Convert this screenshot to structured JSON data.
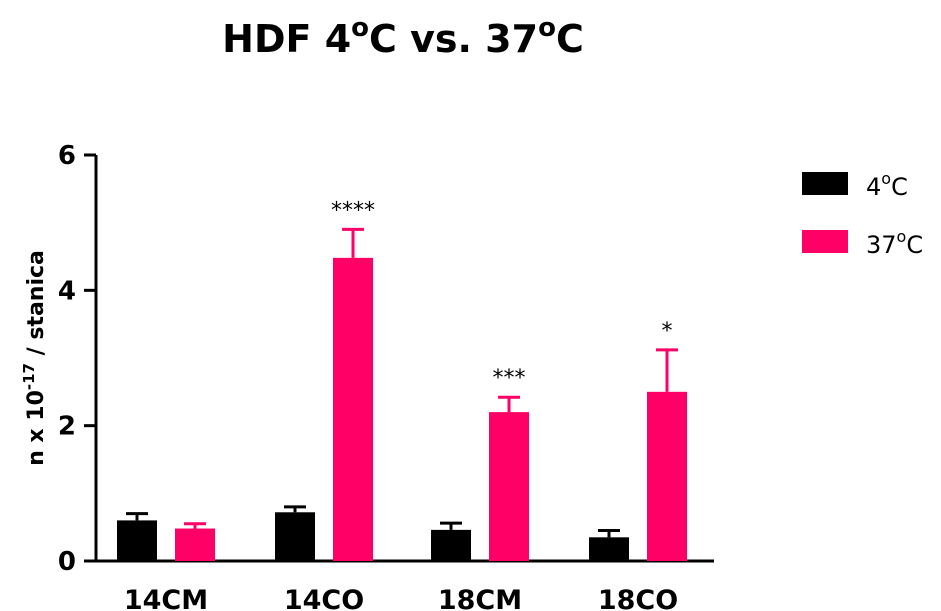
{
  "chart_data": {
    "type": "bar",
    "title": {
      "main": "HDF 4",
      "sup1": "o",
      "mid": "C vs. 37",
      "sup2": "o",
      "end": "C"
    },
    "ylabel": {
      "pre": "n x 10",
      "sup": "-17",
      "post": " / stanica"
    },
    "xlabel": "",
    "categories": [
      "14CM",
      "14CO",
      "18CM",
      "18CO"
    ],
    "ylim": [
      0,
      6
    ],
    "yticks": [
      0,
      2,
      4,
      6
    ],
    "series": [
      {
        "name": {
          "pre": "4",
          "sup": "o",
          "post": "C"
        },
        "color": "#000000",
        "values": [
          0.6,
          0.72,
          0.46,
          0.35
        ],
        "errors": [
          0.1,
          0.08,
          0.1,
          0.1
        ]
      },
      {
        "name": {
          "pre": "37",
          "sup": "o",
          "post": "C"
        },
        "color": "#FF0066",
        "values": [
          0.48,
          4.48,
          2.2,
          2.5
        ],
        "errors": [
          0.07,
          0.42,
          0.22,
          0.62
        ]
      }
    ],
    "significance": [
      "",
      "****",
      "***",
      "*"
    ],
    "grid": false,
    "legend_position": "top-right"
  }
}
